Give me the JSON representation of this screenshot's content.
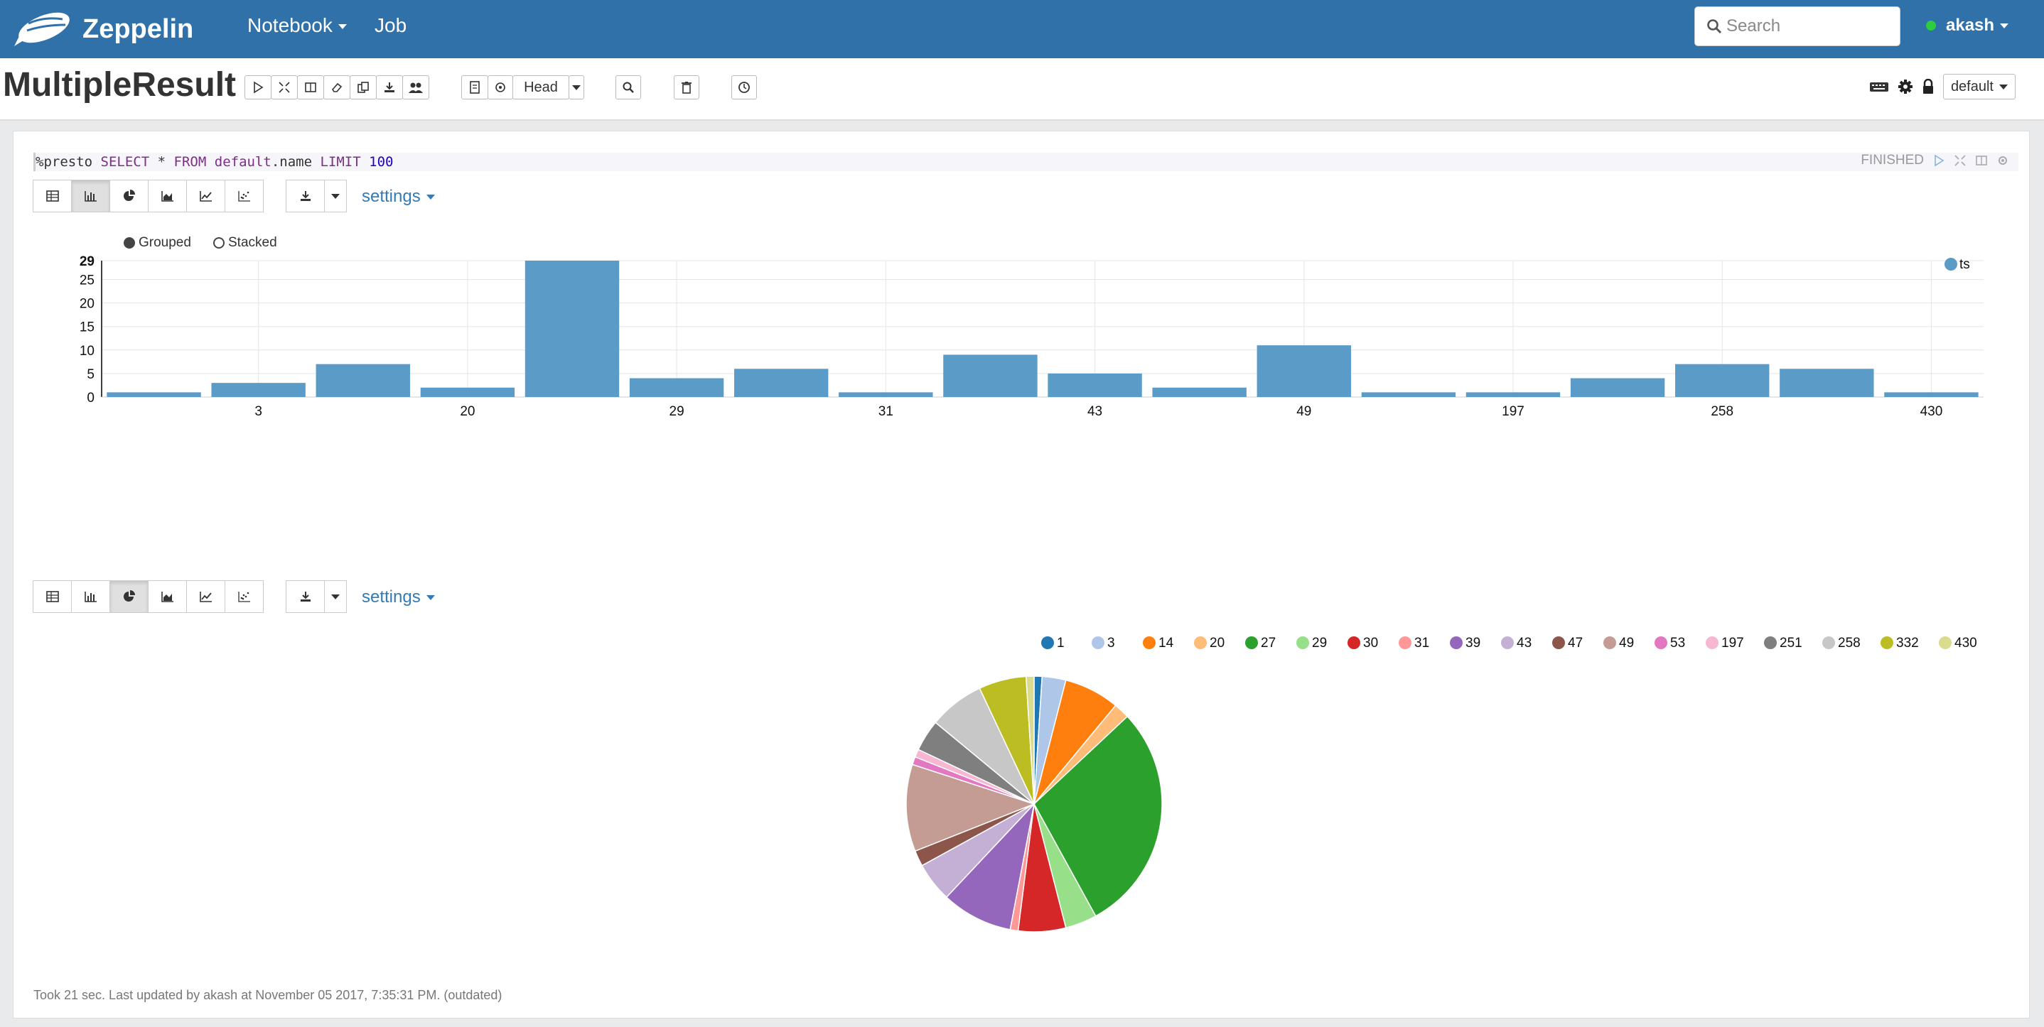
{
  "nav": {
    "brand": "Zeppelin",
    "notebook_label": "Notebook",
    "job_label": "Job",
    "search_placeholder": "Search",
    "user": "akash"
  },
  "notebook": {
    "title": "MultipleResult",
    "head_label": "Head",
    "interpreter_binding": "default"
  },
  "paragraph": {
    "code": {
      "prefix": "%presto",
      "kw1": "SELECT",
      "star": "*",
      "kw2": "FROM",
      "table": "default",
      "dot_name": ".name",
      "kw3": "LIMIT",
      "limit": "100"
    },
    "status": "FINISHED",
    "settings_label": "settings",
    "footer": "Took 21 sec. Last updated by akash at November 05 2017, 7:35:31 PM. (outdated)"
  },
  "colors": {
    "navbar": "#3071a9",
    "bar": "#5b9bc8",
    "pie_palette": [
      "#1f77b4",
      "#aec7e8",
      "#ff7f0e",
      "#ffbb78",
      "#2ca02c",
      "#98df8a",
      "#d62728",
      "#ff9896",
      "#9467bd",
      "#c5b0d5",
      "#8c564b",
      "#c49c94",
      "#e377c2",
      "#f7b6d2",
      "#7f7f7f",
      "#c7c7c7",
      "#bcbd22",
      "#dbdb8d"
    ]
  },
  "chart_data": [
    {
      "type": "bar",
      "legend_mode": {
        "grouped": "Grouped",
        "stacked": "Stacked",
        "selected": "grouped"
      },
      "categories": [
        "1",
        "3",
        "14",
        "20",
        "27",
        "29",
        "30",
        "31",
        "39",
        "43",
        "47",
        "49",
        "53",
        "197",
        "251",
        "258",
        "332",
        "430"
      ],
      "tick_labels_shown": [
        "3",
        "20",
        "29",
        "31",
        "43",
        "49",
        "197",
        "258",
        "430"
      ],
      "series": [
        {
          "name": "ts",
          "values": [
            1,
            3,
            7,
            2,
            29,
            4,
            6,
            1,
            9,
            5,
            2,
            11,
            1,
            1,
            4,
            7,
            6,
            1
          ]
        }
      ],
      "yticks": [
        "0",
        "5",
        "10",
        "15",
        "20",
        "25",
        "29"
      ],
      "ylim": [
        0,
        29
      ],
      "grid": true,
      "legend_placement": "top-right"
    },
    {
      "type": "pie",
      "categories": [
        "1",
        "3",
        "14",
        "20",
        "27",
        "29",
        "30",
        "31",
        "39",
        "43",
        "47",
        "49",
        "53",
        "197",
        "251",
        "258",
        "332",
        "430"
      ],
      "values": [
        1,
        3,
        7,
        2,
        29,
        4,
        6,
        1,
        9,
        5,
        2,
        11,
        1,
        1,
        4,
        7,
        6,
        1
      ],
      "legend_placement": "top-right"
    }
  ]
}
